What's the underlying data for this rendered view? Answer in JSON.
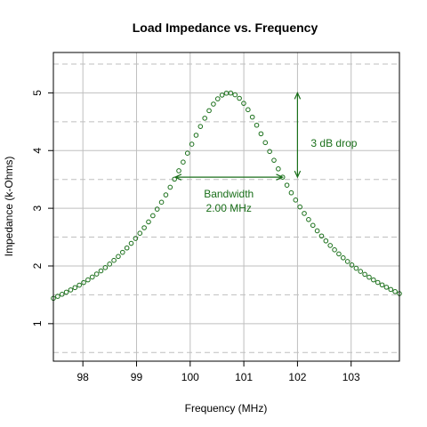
{
  "chart_data": {
    "type": "scatter",
    "title": "Load Impedance vs. Frequency",
    "xlabel": "Frequency (MHz)",
    "ylabel": "Impedance (k-Ohms)",
    "xlim": [
      97.45,
      103.9
    ],
    "ylim": [
      0.35,
      5.7
    ],
    "x_ticks": [
      98,
      99,
      100,
      101,
      102,
      103
    ],
    "x_tick_labels": [
      "98",
      "99",
      "100",
      "101",
      "102",
      "103"
    ],
    "y_ticks": [
      1,
      2,
      3,
      4,
      5
    ],
    "y_tick_labels": [
      "1",
      "2",
      "3",
      "4",
      "5"
    ],
    "grid": true,
    "grid_solid_x": [
      98,
      99,
      100,
      101,
      102,
      103
    ],
    "grid_solid_y": [
      1,
      2,
      3,
      4,
      5
    ],
    "grid_dashed_y": [
      0.5,
      1.5,
      2.5,
      3.5,
      4.5,
      5.5
    ],
    "curve": {
      "center_mhz": 100.72,
      "peak_kohm": 5.0,
      "bandwidth_mhz": 2.0,
      "x_start": 97.45,
      "x_end": 103.9,
      "num_points": 81
    },
    "colors": {
      "series": "#1a6f1a",
      "grid_solid": "#bfbfbf",
      "grid_dashed": "#bfbfbf",
      "axis": "#000000"
    },
    "annotations": {
      "bandwidth": {
        "label_line1": "Bandwidth",
        "label_line2": "2.00 MHz",
        "x1": 99.72,
        "x2": 101.72,
        "y": 3.54,
        "text_x": 100.72,
        "text_y1": 3.25,
        "text_y2": 3.0
      },
      "drop": {
        "label": "3 dB drop",
        "x": 102.0,
        "y1": 3.54,
        "y2": 5.0,
        "text_x": 102.68,
        "text_y": 4.13
      }
    }
  }
}
